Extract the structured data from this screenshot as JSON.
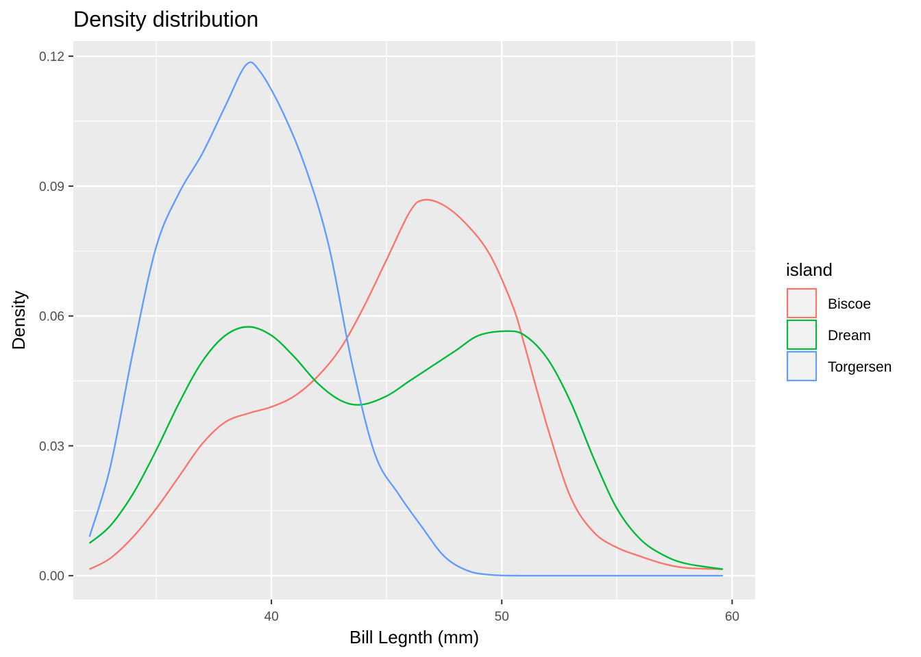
{
  "chart_data": {
    "type": "line",
    "title": "Density distribution",
    "xlabel": "Bill Legnth (mm)",
    "ylabel": "Density",
    "xlim": [
      31.4,
      61.0
    ],
    "ylim": [
      -0.0055,
      0.1235
    ],
    "x_ticks": [
      40,
      50,
      60
    ],
    "x_tick_labels": [
      "40",
      "50",
      "60"
    ],
    "x_minor_ticks": [
      35,
      45,
      55
    ],
    "y_ticks": [
      0.0,
      0.03,
      0.06,
      0.09,
      0.12
    ],
    "y_tick_labels": [
      "0.00",
      "0.03",
      "0.06",
      "0.09",
      "0.12"
    ],
    "y_minor_ticks": [
      0.015,
      0.045,
      0.075,
      0.105
    ],
    "grid": true,
    "legend": {
      "title": "island",
      "position": "right"
    },
    "series": [
      {
        "name": "Biscoe",
        "color": "#F8766D",
        "points": [
          [
            32.1,
            0.0015
          ],
          [
            33,
            0.004
          ],
          [
            34,
            0.009
          ],
          [
            35,
            0.0155
          ],
          [
            36,
            0.023
          ],
          [
            37,
            0.0305
          ],
          [
            38,
            0.0355
          ],
          [
            39,
            0.0375
          ],
          [
            40,
            0.039
          ],
          [
            41,
            0.0415
          ],
          [
            42,
            0.046
          ],
          [
            43,
            0.0525
          ],
          [
            44,
            0.062
          ],
          [
            45,
            0.073
          ],
          [
            46,
            0.084
          ],
          [
            46.6,
            0.0868
          ],
          [
            47.5,
            0.0855
          ],
          [
            48.5,
            0.081
          ],
          [
            49.5,
            0.074
          ],
          [
            50.5,
            0.062
          ],
          [
            51,
            0.053
          ],
          [
            52,
            0.034
          ],
          [
            53,
            0.018
          ],
          [
            54,
            0.01
          ],
          [
            55,
            0.0065
          ],
          [
            56,
            0.0045
          ],
          [
            57,
            0.0028
          ],
          [
            58,
            0.0018
          ],
          [
            59.6,
            0.0015
          ]
        ]
      },
      {
        "name": "Dream",
        "color": "#00BA38",
        "points": [
          [
            32.1,
            0.0075
          ],
          [
            33,
            0.0115
          ],
          [
            34,
            0.019
          ],
          [
            35,
            0.029
          ],
          [
            36,
            0.04
          ],
          [
            37,
            0.0495
          ],
          [
            38,
            0.0555
          ],
          [
            39,
            0.0575
          ],
          [
            40,
            0.0555
          ],
          [
            41,
            0.0505
          ],
          [
            42,
            0.0445
          ],
          [
            43,
            0.0405
          ],
          [
            43.9,
            0.0395
          ],
          [
            45,
            0.0415
          ],
          [
            46,
            0.045
          ],
          [
            47,
            0.0485
          ],
          [
            48,
            0.052
          ],
          [
            49,
            0.0555
          ],
          [
            50.2,
            0.0565
          ],
          [
            51,
            0.0555
          ],
          [
            52,
            0.05
          ],
          [
            53,
            0.04
          ],
          [
            54,
            0.027
          ],
          [
            55,
            0.0155
          ],
          [
            56,
            0.0085
          ],
          [
            57,
            0.0048
          ],
          [
            58,
            0.0028
          ],
          [
            59.6,
            0.0015
          ]
        ]
      },
      {
        "name": "Torgersen",
        "color": "#619CFF",
        "points": [
          [
            32.1,
            0.009
          ],
          [
            33,
            0.025
          ],
          [
            34,
            0.052
          ],
          [
            35,
            0.076
          ],
          [
            36,
            0.0885
          ],
          [
            37,
            0.0975
          ],
          [
            38,
            0.1085
          ],
          [
            38.9,
            0.118
          ],
          [
            39.5,
            0.1165
          ],
          [
            40.5,
            0.107
          ],
          [
            41.5,
            0.094
          ],
          [
            42.5,
            0.076
          ],
          [
            43.5,
            0.049
          ],
          [
            44.5,
            0.028
          ],
          [
            45.5,
            0.019
          ],
          [
            46.5,
            0.0115
          ],
          [
            47.5,
            0.0045
          ],
          [
            48.5,
            0.0012
          ],
          [
            49.5,
            0.0002
          ],
          [
            51,
            0.0
          ],
          [
            55,
            0.0
          ],
          [
            59.6,
            0.0
          ]
        ]
      }
    ]
  }
}
